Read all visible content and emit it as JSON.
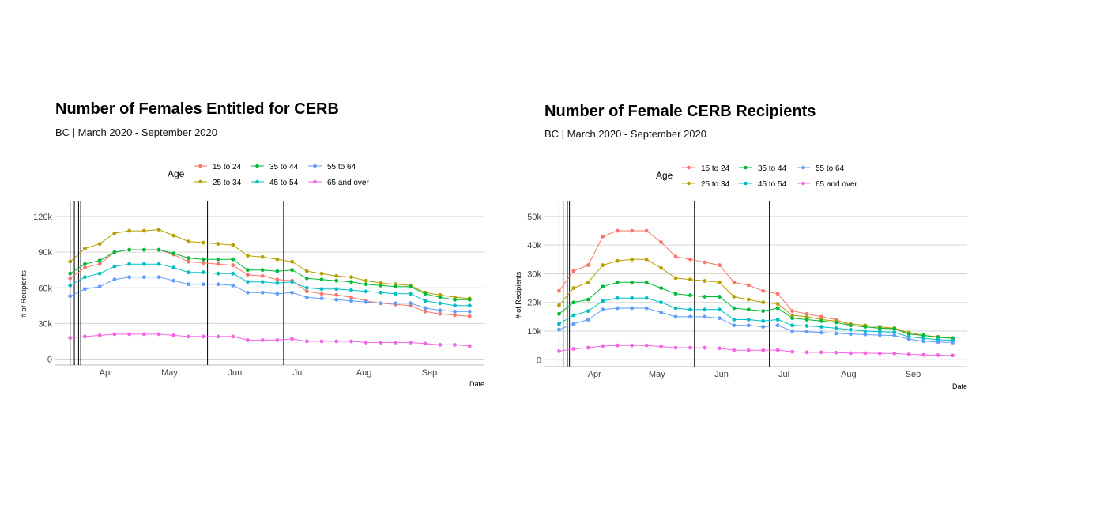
{
  "charts": [
    {
      "title": "Number of Females Entitled for CERB",
      "subtitle": "BC | March 2020 - September 2020"
    },
    {
      "title": "Number of Female CERB Recipients",
      "subtitle": "BC | March 2020 - September 2020"
    }
  ],
  "chart_data": [
    {
      "type": "line",
      "title": "Number of Females Entitled for CERB",
      "subtitle": "BC | March 2020 - September 2020",
      "xlabel": "Date",
      "ylabel": "# of Recipients",
      "x_ticks": [
        "Apr",
        "May",
        "Jun",
        "Jul",
        "Aug",
        "Sep"
      ],
      "x_tick_dates": [
        "2020-04-01",
        "2020-05-01",
        "2020-06-01",
        "2020-07-01",
        "2020-08-01",
        "2020-09-01"
      ],
      "y_ticks": [
        0,
        30000,
        60000,
        90000,
        120000
      ],
      "y_tick_labels": [
        "0",
        "30k",
        "60k",
        "90k",
        "120k"
      ],
      "ylim": [
        -5000,
        128000
      ],
      "xlim": [
        "2020-03-08",
        "2020-09-27"
      ],
      "grid": true,
      "legend_title": "Age",
      "legend_position": "top",
      "vlines": [
        "2020-03-15",
        "2020-03-17",
        "2020-03-19",
        "2020-03-20",
        "2020-05-19",
        "2020-06-24"
      ],
      "x": [
        "2020-03-15",
        "2020-03-22",
        "2020-03-29",
        "2020-04-05",
        "2020-04-12",
        "2020-04-19",
        "2020-04-26",
        "2020-05-03",
        "2020-05-10",
        "2020-05-17",
        "2020-05-24",
        "2020-05-31",
        "2020-06-07",
        "2020-06-14",
        "2020-06-21",
        "2020-06-28",
        "2020-07-05",
        "2020-07-12",
        "2020-07-19",
        "2020-07-26",
        "2020-08-02",
        "2020-08-09",
        "2020-08-16",
        "2020-08-23",
        "2020-08-30",
        "2020-09-06",
        "2020-09-13",
        "2020-09-20"
      ],
      "series": [
        {
          "name": "15 to 24",
          "color": "#F8766D",
          "values": [
            68000,
            77000,
            80000,
            90000,
            92000,
            92000,
            92000,
            88000,
            82000,
            81000,
            80000,
            79000,
            71000,
            70000,
            67000,
            66000,
            57000,
            55000,
            54000,
            52000,
            49000,
            47000,
            46000,
            45000,
            40000,
            38000,
            37000,
            36000
          ]
        },
        {
          "name": "25 to 34",
          "color": "#B79F00",
          "values": [
            82000,
            93000,
            97000,
            106000,
            108000,
            108000,
            109000,
            104000,
            99000,
            98000,
            97000,
            96000,
            87000,
            86000,
            84000,
            82000,
            74000,
            72000,
            70000,
            69000,
            66000,
            64000,
            63000,
            62000,
            56000,
            54000,
            52000,
            51000
          ]
        },
        {
          "name": "35 to 44",
          "color": "#00BA38",
          "values": [
            72000,
            80000,
            83000,
            90000,
            92000,
            92000,
            92000,
            89000,
            85000,
            84000,
            84000,
            84000,
            75000,
            75000,
            74000,
            75000,
            68000,
            67000,
            66000,
            65000,
            63000,
            62000,
            61000,
            61000,
            55000,
            52000,
            50000,
            50000
          ]
        },
        {
          "name": "45 to 54",
          "color": "#00BFC4",
          "values": [
            62000,
            69000,
            72000,
            78000,
            80000,
            80000,
            80000,
            77000,
            73000,
            73000,
            72000,
            72000,
            65000,
            65000,
            64000,
            65000,
            60000,
            59000,
            59000,
            58000,
            57000,
            56000,
            55000,
            55000,
            49000,
            47000,
            45000,
            45000
          ]
        },
        {
          "name": "55 to 64",
          "color": "#619CFF",
          "values": [
            53000,
            59000,
            61000,
            67000,
            69000,
            69000,
            69000,
            66000,
            63000,
            63000,
            63000,
            62000,
            56000,
            56000,
            55000,
            56000,
            52000,
            51000,
            50000,
            49000,
            48000,
            47000,
            47000,
            47000,
            43000,
            41000,
            40000,
            40000
          ]
        },
        {
          "name": "65 and over",
          "color": "#F564E3",
          "values": [
            18000,
            19000,
            20000,
            21000,
            21000,
            21000,
            21000,
            20000,
            19000,
            19000,
            19000,
            19000,
            16000,
            16000,
            16000,
            17000,
            15000,
            15000,
            15000,
            15000,
            14000,
            14000,
            14000,
            14000,
            13000,
            12000,
            12000,
            11000
          ]
        }
      ]
    },
    {
      "type": "line",
      "title": "Number of Female CERB Recipients",
      "subtitle": "BC | March 2020 - September 2020",
      "xlabel": "Date",
      "ylabel": "# of Recipients",
      "x_ticks": [
        "Apr",
        "May",
        "Jun",
        "Jul",
        "Aug",
        "Sep"
      ],
      "x_tick_dates": [
        "2020-04-01",
        "2020-05-01",
        "2020-06-01",
        "2020-07-01",
        "2020-08-01",
        "2020-09-01"
      ],
      "y_ticks": [
        0,
        10000,
        20000,
        30000,
        40000,
        50000
      ],
      "y_tick_labels": [
        "0",
        "10k",
        "20k",
        "30k",
        "40k",
        "50k"
      ],
      "ylim": [
        -2400,
        53000
      ],
      "xlim": [
        "2020-03-08",
        "2020-09-27"
      ],
      "grid": true,
      "legend_title": "Age",
      "legend_position": "top",
      "vlines": [
        "2020-03-15",
        "2020-03-17",
        "2020-03-19",
        "2020-03-20",
        "2020-05-19",
        "2020-06-24"
      ],
      "x": [
        "2020-03-15",
        "2020-03-22",
        "2020-03-29",
        "2020-04-05",
        "2020-04-12",
        "2020-04-19",
        "2020-04-26",
        "2020-05-03",
        "2020-05-10",
        "2020-05-17",
        "2020-05-24",
        "2020-05-31",
        "2020-06-07",
        "2020-06-14",
        "2020-06-21",
        "2020-06-28",
        "2020-07-05",
        "2020-07-12",
        "2020-07-19",
        "2020-07-26",
        "2020-08-02",
        "2020-08-09",
        "2020-08-16",
        "2020-08-23",
        "2020-08-30",
        "2020-09-06",
        "2020-09-13",
        "2020-09-20"
      ],
      "series": [
        {
          "name": "15 to 24",
          "color": "#F8766D",
          "values": [
            24000,
            31000,
            33000,
            43000,
            45000,
            45000,
            45000,
            41000,
            36000,
            35000,
            34000,
            33000,
            27000,
            26000,
            24000,
            23000,
            17000,
            16000,
            15000,
            14000,
            12000,
            11500,
            11000,
            11000,
            9000,
            8500,
            8000,
            7500
          ]
        },
        {
          "name": "25 to 34",
          "color": "#B79F00",
          "values": [
            19000,
            25000,
            27000,
            33000,
            34500,
            35000,
            35000,
            32000,
            28500,
            28000,
            27500,
            27000,
            22000,
            21000,
            20000,
            19500,
            15500,
            15000,
            14000,
            13500,
            12500,
            12000,
            11500,
            11000,
            9500,
            8500,
            8000,
            7500
          ]
        },
        {
          "name": "35 to 44",
          "color": "#00BA38",
          "values": [
            16000,
            20000,
            21000,
            25500,
            27000,
            27000,
            27000,
            25000,
            23000,
            22500,
            22000,
            22000,
            18000,
            17500,
            17000,
            18000,
            14500,
            14000,
            13500,
            13000,
            12000,
            11500,
            11000,
            10800,
            9000,
            8500,
            7800,
            7500
          ]
        },
        {
          "name": "45 to 54",
          "color": "#00BFC4",
          "values": [
            12500,
            15500,
            17000,
            20500,
            21500,
            21500,
            21500,
            20000,
            18000,
            17500,
            17500,
            17500,
            14000,
            14000,
            13500,
            14000,
            12000,
            11800,
            11500,
            11000,
            10500,
            10000,
            9800,
            9600,
            8000,
            7500,
            7000,
            6800
          ]
        },
        {
          "name": "55 to 64",
          "color": "#619CFF",
          "values": [
            10500,
            12500,
            14000,
            17500,
            18000,
            18000,
            18000,
            16500,
            15000,
            15000,
            15000,
            14500,
            12000,
            12000,
            11500,
            12000,
            10000,
            9800,
            9500,
            9200,
            9000,
            8800,
            8600,
            8500,
            7200,
            6500,
            6200,
            6000
          ]
        },
        {
          "name": "65 and over",
          "color": "#F564E3",
          "values": [
            3000,
            3800,
            4200,
            4800,
            5000,
            5000,
            5000,
            4600,
            4200,
            4200,
            4200,
            4000,
            3300,
            3300,
            3300,
            3400,
            2800,
            2600,
            2600,
            2500,
            2300,
            2300,
            2200,
            2200,
            1900,
            1700,
            1600,
            1500
          ]
        }
      ]
    }
  ]
}
